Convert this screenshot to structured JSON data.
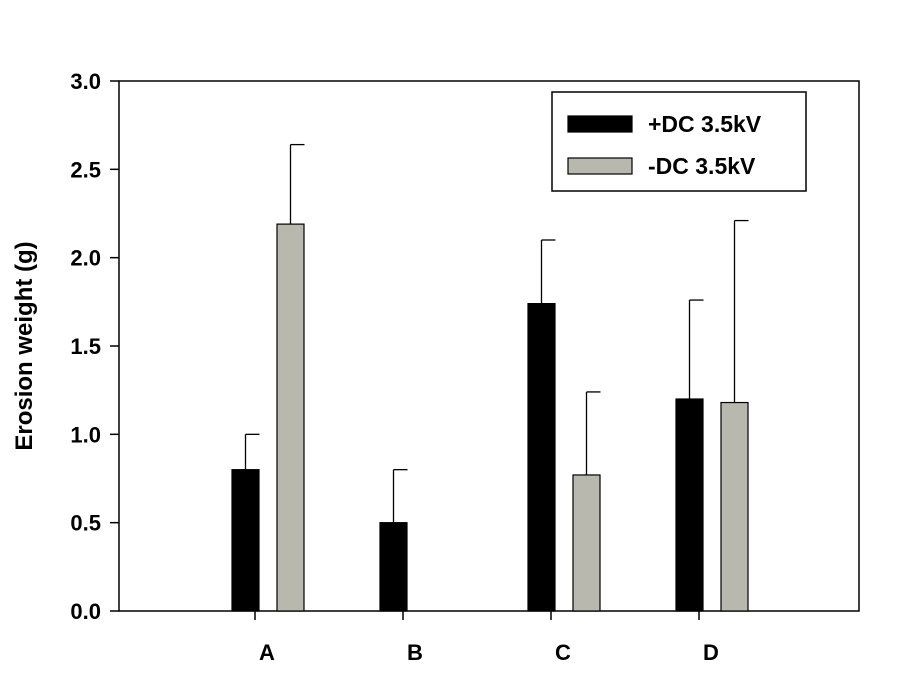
{
  "chart_data": {
    "type": "bar",
    "title": "",
    "xlabel": "",
    "ylabel": "Erosion weight (g)",
    "ylim": [
      0,
      3.0
    ],
    "yticks": [
      "0.0",
      "0.5",
      "1.0",
      "1.5",
      "2.0",
      "2.5",
      "3.0"
    ],
    "categories": [
      "A",
      "B",
      "C",
      "D"
    ],
    "series": [
      {
        "name": "+DC 3.5kV",
        "color": "#000000",
        "values": [
          0.8,
          0.5,
          1.74,
          1.2
        ],
        "errors": [
          0.2,
          0.3,
          0.36,
          0.56
        ]
      },
      {
        "name": "-DC 3.5kV",
        "color": "#b8b8ae",
        "values": [
          2.19,
          0,
          0.77,
          1.18
        ],
        "errors": [
          0.45,
          0,
          0.47,
          1.03
        ]
      }
    ],
    "grid": false,
    "legend_position": "top-right"
  }
}
